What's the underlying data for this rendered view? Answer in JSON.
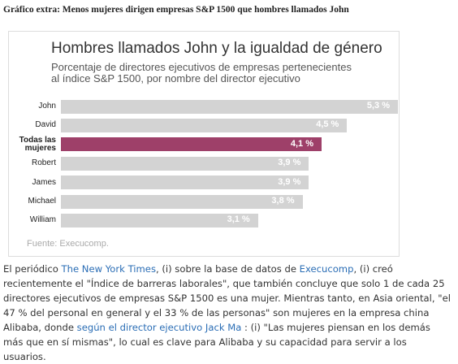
{
  "header": {
    "title": "Gráfico extra: Menos mujeres dirigen empresas S&P 1500 que hombres llamados John"
  },
  "chart_data": {
    "type": "bar",
    "title": "Hombres llamados John y la igualdad de género",
    "subtitle": [
      "Porcentaje de directores ejecutivos de empresas pertenecientes",
      "al índice S&P 1500, por nombre del director ejecutivo"
    ],
    "categories": [
      "John",
      "David",
      "Todas las mujeres",
      "Robert",
      "James",
      "Michael",
      "William"
    ],
    "values": [
      5.3,
      4.5,
      4.1,
      3.9,
      3.9,
      3.8,
      3.1
    ],
    "value_labels": [
      "5,3 %",
      "4,5 %",
      "4,1 %",
      "3,9 %",
      "3,9 %",
      "3,8 %",
      "3,1 %"
    ],
    "colors": [
      "#d3d3d3",
      "#d3d3d3",
      "#9e4069",
      "#d3d3d3",
      "#d3d3d3",
      "#d3d3d3",
      "#d3d3d3"
    ],
    "source": "Fuente: Execucomp."
  },
  "article": {
    "segments": [
      {
        "text": "El periódico "
      },
      {
        "text": "The New York Times",
        "link": true
      },
      {
        "text": ", (i) sobre la base de datos de "
      },
      {
        "text": "Execucomp",
        "link": true
      },
      {
        "text": ", (i) creó recientemente el \"Índice de barreras laborales\", que también concluye que solo 1 de cada 25 directores ejecutivos de empresas S&P 1500 es una mujer. Mientras tanto, en Asia oriental, \"el 47 % del personal en general y el 33 % de las personas\" son mujeres en la empresa china Alibaba, donde "
      },
      {
        "text": "según el director ejecutivo Jack Ma",
        "link": true
      },
      {
        "text": " : (i) \"Las mujeres piensan en los demás más que en sí mismas\", lo cual es clave para Alibaba y su capacidad para servir a los usuarios."
      }
    ]
  }
}
